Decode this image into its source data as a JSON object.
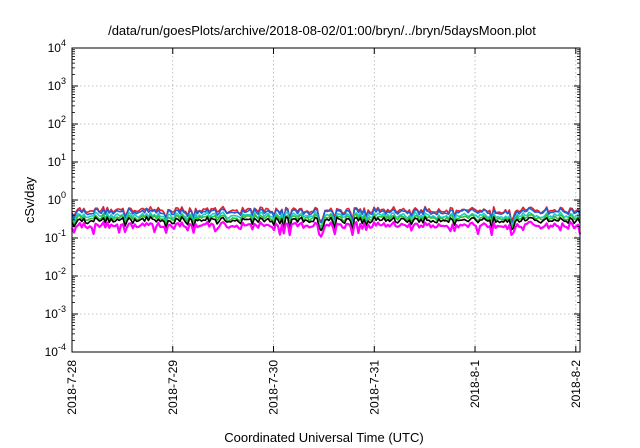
{
  "chart_data": {
    "type": "line",
    "title": "/data/run/goesPlots/archive/2018-08-02/01:00/bryn/../bryn/5daysMoon.plot",
    "xlabel": "Coordinated Universal Time (UTC)",
    "ylabel": "cSv/day",
    "yscale": "log",
    "ylim": [
      0.0001,
      10000
    ],
    "y_ticks": [
      {
        "base": "10",
        "exp": "-4"
      },
      {
        "base": "10",
        "exp": "-3"
      },
      {
        "base": "10",
        "exp": "-2"
      },
      {
        "base": "10",
        "exp": "-1"
      },
      {
        "base": "10",
        "exp": "0"
      },
      {
        "base": "10",
        "exp": "1"
      },
      {
        "base": "10",
        "exp": "2"
      },
      {
        "base": "10",
        "exp": "3"
      },
      {
        "base": "10",
        "exp": "4"
      }
    ],
    "x_ticks": [
      "2018-7-28",
      "2018-7-29",
      "2018-7-30",
      "2018-7-31",
      "2018-8-1",
      "2018-8-2"
    ],
    "xlim": [
      "2018-07-28T00:00",
      "2018-08-02T01:00"
    ],
    "grid": true,
    "series": [
      {
        "color": "#e8202a",
        "level": 0.55
      },
      {
        "color": "#1a5fd6",
        "level": 0.5
      },
      {
        "color": "#20c9c9",
        "level": 0.4
      },
      {
        "color": "#30c030",
        "level": 0.35
      },
      {
        "color": "#000000",
        "level": 0.3
      },
      {
        "color": "#ff00ff",
        "level": 0.22
      }
    ]
  }
}
